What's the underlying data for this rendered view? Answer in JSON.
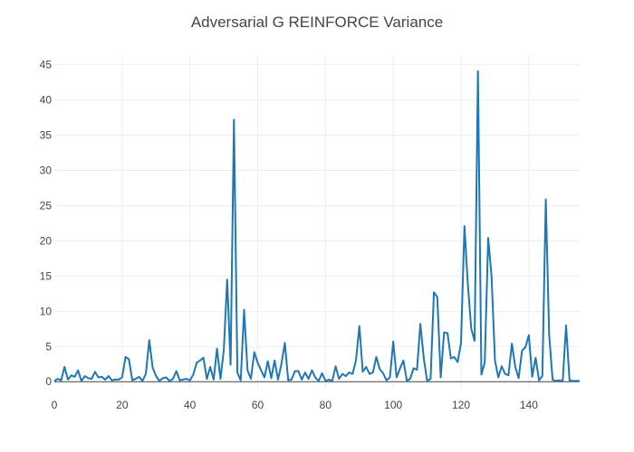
{
  "chart_data": {
    "type": "line",
    "title": "Adversarial G REINFORCE Variance",
    "xlabel": "",
    "ylabel": "",
    "xlim": [
      0,
      155
    ],
    "ylim": [
      -1,
      46.5
    ],
    "xticks": [
      0,
      20,
      40,
      60,
      80,
      100,
      120,
      140
    ],
    "yticks": [
      0,
      5,
      10,
      15,
      20,
      25,
      30,
      35,
      40,
      45
    ],
    "grid": true,
    "legend": "none",
    "series": [
      {
        "color": "#1f77b4",
        "x": [
          0,
          1,
          2,
          3,
          4,
          5,
          6,
          7,
          8,
          9,
          10,
          11,
          12,
          13,
          14,
          15,
          16,
          17,
          18,
          19,
          20,
          21,
          22,
          23,
          24,
          25,
          26,
          27,
          28,
          29,
          30,
          31,
          32,
          33,
          34,
          35,
          36,
          37,
          38,
          39,
          40,
          41,
          42,
          43,
          44,
          45,
          46,
          47,
          48,
          49,
          50,
          51,
          52,
          53,
          54,
          55,
          56,
          57,
          58,
          59,
          60,
          61,
          62,
          63,
          64,
          65,
          66,
          67,
          68,
          69,
          70,
          71,
          72,
          73,
          74,
          75,
          76,
          77,
          78,
          79,
          80,
          81,
          82,
          83,
          84,
          85,
          86,
          87,
          88,
          89,
          90,
          91,
          92,
          93,
          94,
          95,
          96,
          97,
          98,
          99,
          100,
          101,
          102,
          103,
          104,
          105,
          106,
          107,
          108,
          109,
          110,
          111,
          112,
          113,
          114,
          115,
          116,
          117,
          118,
          119,
          120,
          121,
          122,
          123,
          124,
          125,
          126,
          127,
          128,
          129,
          130,
          131,
          132,
          133,
          134,
          135,
          136,
          137,
          138,
          139,
          140,
          141,
          142,
          143,
          144,
          145,
          146,
          147,
          148,
          149,
          150,
          151,
          152,
          153,
          154,
          155
        ],
        "y": [
          0.1,
          0.4,
          0.2,
          2.1,
          0.3,
          0.9,
          0.7,
          1.6,
          0.1,
          0.8,
          0.5,
          0.4,
          1.4,
          0.6,
          0.7,
          0.3,
          0.8,
          0.2,
          0.3,
          0.3,
          0.6,
          3.5,
          3.2,
          0.2,
          0.4,
          0.7,
          0.1,
          1.1,
          5.9,
          2.0,
          0.8,
          0.1,
          0.5,
          0.6,
          0.1,
          0.4,
          1.5,
          0.2,
          0.3,
          0.4,
          0.2,
          1.0,
          2.7,
          3.0,
          3.4,
          0.4,
          2.1,
          0.3,
          4.7,
          0.4,
          4.5,
          14.5,
          2.4,
          37.2,
          1.3,
          0.2,
          10.2,
          1.6,
          0.4,
          4.2,
          2.7,
          1.6,
          0.6,
          2.9,
          0.5,
          3.0,
          0.3,
          2.5,
          5.5,
          0.2,
          0.3,
          1.5,
          1.5,
          0.3,
          1.3,
          0.4,
          1.6,
          0.6,
          0.1,
          1.2,
          0.1,
          0.3,
          0.1,
          2.2,
          0.4,
          1.1,
          0.8,
          1.3,
          1.1,
          3.0,
          7.9,
          1.4,
          2.1,
          1.1,
          1.3,
          3.5,
          1.8,
          1.2,
          0.2,
          0.6,
          5.7,
          0.6,
          1.9,
          3.0,
          0.1,
          0.4,
          1.9,
          1.7,
          8.2,
          3.3,
          0.1,
          0.4,
          12.7,
          12.0,
          0.6,
          7.0,
          6.9,
          3.3,
          3.5,
          2.8,
          5.5,
          22.1,
          13.9,
          7.5,
          5.8,
          44.1,
          1.0,
          2.7,
          20.4,
          15.0,
          3.0,
          0.6,
          2.2,
          1.1,
          0.9,
          5.4,
          2.1,
          0.5,
          4.4,
          4.9,
          6.6,
          0.7,
          3.4,
          0.2,
          0.8,
          25.9,
          6.7,
          0.3,
          0.1,
          0.2,
          0.1,
          8.0,
          0.2,
          0.1,
          0.1,
          0.1
        ]
      }
    ]
  }
}
